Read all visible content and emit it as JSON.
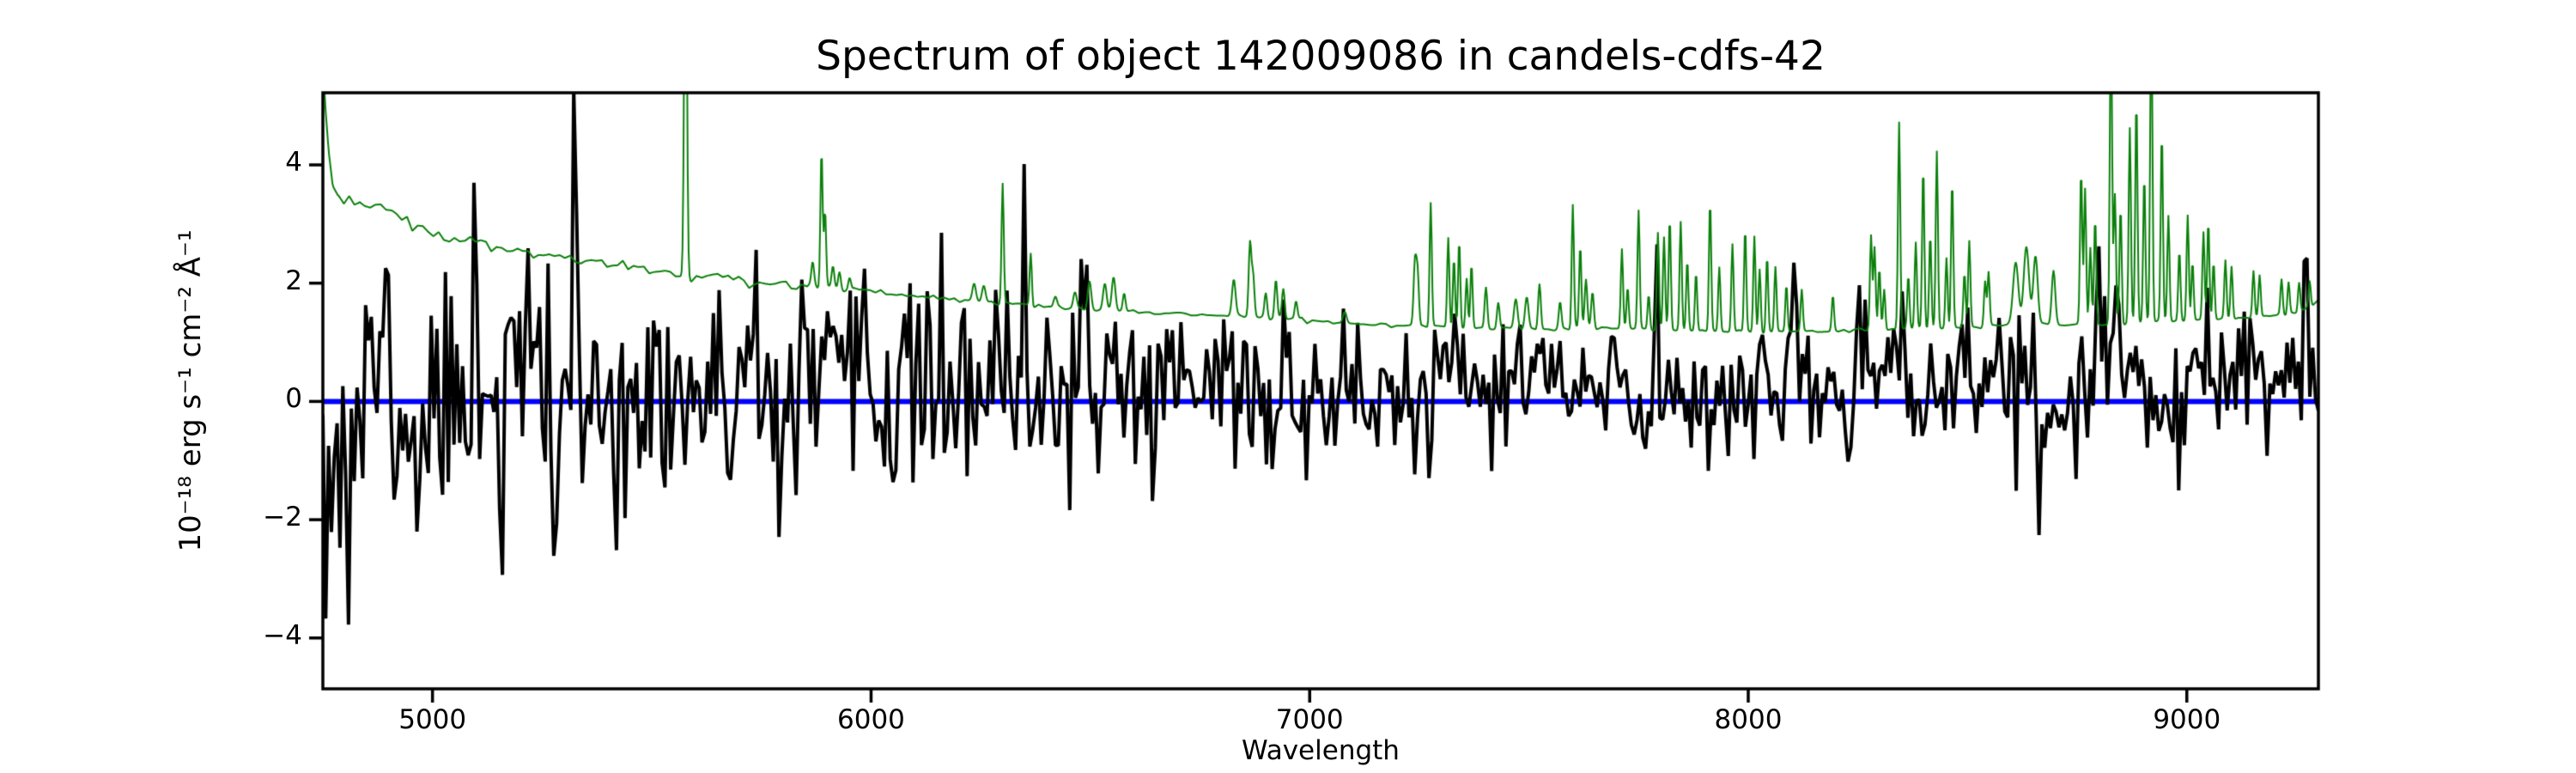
{
  "title": "Spectrum of object 142009086 in candels-cdfs-42",
  "axes": {
    "xlabel": "Wavelength",
    "ylabel": "10⁻¹⁸ erg s⁻¹ cm⁻² Å⁻¹"
  },
  "chart_data": {
    "type": "line",
    "title": "Spectrum of object 142009086 in candels-cdfs-42",
    "xlabel": "Wavelength",
    "ylabel": "10⁻¹⁸ erg s⁻¹ cm⁻² Å⁻¹",
    "xlim": [
      4750,
      9300
    ],
    "ylim": [
      -4.86,
      5.22
    ],
    "xticks": [
      5000,
      6000,
      7000,
      8000,
      9000
    ],
    "xtick_labels": [
      "5000",
      "6000",
      "7000",
      "8000",
      "9000"
    ],
    "yticks": [
      4,
      2,
      0,
      -2,
      -4
    ],
    "ytick_labels": [
      "4",
      "2",
      "0",
      "−2",
      "−4"
    ],
    "grid": false,
    "legend": null,
    "series": [
      {
        "name": "flux",
        "description": "noisy object flux spectrum around zero",
        "color": "#000000",
        "linewidth": 4,
        "sample_step": 6.5,
        "seed": 11,
        "baseline": [
          [
            4750,
            0.05
          ],
          [
            5500,
            0.1
          ],
          [
            6500,
            0.15
          ],
          [
            7500,
            0.18
          ],
          [
            8300,
            0.2
          ],
          [
            9300,
            0.22
          ]
        ],
        "noise_sigma": [
          [
            4750,
            1.15
          ],
          [
            5200,
            1.1
          ],
          [
            5600,
            1.0
          ],
          [
            6000,
            0.92
          ],
          [
            6400,
            0.85
          ],
          [
            6800,
            0.78
          ],
          [
            7200,
            0.7
          ],
          [
            7600,
            0.66
          ],
          [
            8000,
            0.62
          ],
          [
            8400,
            0.63
          ],
          [
            8700,
            0.68
          ],
          [
            9000,
            0.62
          ],
          [
            9300,
            0.6
          ]
        ],
        "slow_noise": {
          "step": 40,
          "sigma_scale": 0.38
        },
        "features": [
          [
            4754,
            2.5,
            3
          ],
          [
            4757,
            -4.7,
            2.5
          ],
          [
            4787,
            -2.2,
            4
          ],
          [
            4808,
            -2.6,
            4
          ],
          [
            4920,
            -2.6,
            5
          ],
          [
            4973,
            -2.2,
            5
          ],
          [
            5096,
            2.8,
            4
          ],
          [
            5155,
            -2.6,
            5
          ],
          [
            5278,
            -2.7,
            5
          ],
          [
            5325,
            4.5,
            3
          ],
          [
            5483,
            -2.5,
            5
          ],
          [
            5560,
            3.0,
            4
          ],
          [
            5680,
            -2.2,
            5
          ],
          [
            6075,
            1.6,
            4
          ],
          [
            6160,
            2.4,
            4
          ],
          [
            6350,
            3.0,
            4
          ],
          [
            6560,
            2.2,
            4
          ],
          [
            7790,
            2.0,
            4
          ],
          [
            8100,
            1.8,
            4
          ],
          [
            8350,
            1.9,
            4
          ],
          [
            8663,
            -2.0,
            5
          ],
          [
            8745,
            -2.2,
            4
          ],
          [
            8800,
            2.0,
            4
          ],
          [
            9270,
            1.7,
            4
          ]
        ]
      },
      {
        "name": "sky-noise-spectrum",
        "description": "green noise/sky spectrum with OH emission lines",
        "color": "#0a800a",
        "linewidth": 2,
        "sample_step": 2,
        "wiggle_seed": 3,
        "wiggle": [
          [
            4750,
            0.05
          ],
          [
            5000,
            0.05
          ],
          [
            5800,
            0.04
          ],
          [
            6200,
            0.02
          ],
          [
            9300,
            0.015
          ]
        ],
        "continuum": [
          [
            4750,
            5.7
          ],
          [
            4756,
            4.9
          ],
          [
            4763,
            4.2
          ],
          [
            4772,
            3.7
          ],
          [
            4785,
            3.45
          ],
          [
            4830,
            3.35
          ],
          [
            4870,
            3.3
          ],
          [
            4910,
            3.22
          ],
          [
            4950,
            3.05
          ],
          [
            5000,
            2.88
          ],
          [
            5040,
            2.75
          ],
          [
            5090,
            2.72
          ],
          [
            5150,
            2.62
          ],
          [
            5250,
            2.5
          ],
          [
            5350,
            2.38
          ],
          [
            5450,
            2.28
          ],
          [
            5550,
            2.18
          ],
          [
            5650,
            2.1
          ],
          [
            5750,
            2.0
          ],
          [
            5850,
            1.95
          ],
          [
            5950,
            1.9
          ],
          [
            6050,
            1.82
          ],
          [
            6150,
            1.75
          ],
          [
            6250,
            1.68
          ],
          [
            6350,
            1.64
          ],
          [
            6450,
            1.58
          ],
          [
            6550,
            1.54
          ],
          [
            6650,
            1.5
          ],
          [
            6750,
            1.47
          ],
          [
            6850,
            1.44
          ],
          [
            6950,
            1.4
          ],
          [
            7050,
            1.33
          ],
          [
            7150,
            1.3
          ],
          [
            7250,
            1.27
          ],
          [
            7350,
            1.25
          ],
          [
            7450,
            1.23
          ],
          [
            7550,
            1.21
          ],
          [
            7650,
            1.25
          ],
          [
            7750,
            1.22
          ],
          [
            7850,
            1.2
          ],
          [
            7950,
            1.19
          ],
          [
            8050,
            1.17
          ],
          [
            8150,
            1.18
          ],
          [
            8250,
            1.2
          ],
          [
            8350,
            1.22
          ],
          [
            8450,
            1.25
          ],
          [
            8550,
            1.27
          ],
          [
            8650,
            1.32
          ],
          [
            8750,
            1.3
          ],
          [
            8850,
            1.32
          ],
          [
            8950,
            1.35
          ],
          [
            9050,
            1.38
          ],
          [
            9150,
            1.42
          ],
          [
            9250,
            1.5
          ],
          [
            9285,
            1.62
          ],
          [
            9300,
            1.72
          ]
        ],
        "emission_lines": [
          [
            5577,
            7.0,
            3
          ],
          [
            5867,
            0.35,
            3
          ],
          [
            5887,
            2.35,
            2.5
          ],
          [
            5895,
            1.3,
            2.5
          ],
          [
            5913,
            0.35,
            3
          ],
          [
            5928,
            0.3,
            3
          ],
          [
            5951,
            0.2,
            3
          ],
          [
            6235,
            0.3,
            4
          ],
          [
            6257,
            0.28,
            4
          ],
          [
            6300,
            2.05,
            2.5
          ],
          [
            6364,
            0.9,
            2.5
          ],
          [
            6420,
            0.2,
            4
          ],
          [
            6465,
            0.3,
            4
          ],
          [
            6498,
            0.5,
            4
          ],
          [
            6533,
            0.45,
            4
          ],
          [
            6553,
            0.55,
            4
          ],
          [
            6577,
            0.3,
            3
          ],
          [
            6827,
            0.6,
            4
          ],
          [
            6864,
            1.25,
            3
          ],
          [
            6871,
            0.7,
            3
          ],
          [
            6900,
            0.4,
            3
          ],
          [
            6923,
            0.65,
            3
          ],
          [
            6940,
            0.5,
            3
          ],
          [
            6969,
            0.3,
            3
          ],
          [
            7080,
            0.2,
            4
          ],
          [
            7240,
            1.05,
            3
          ],
          [
            7246,
            0.9,
            3
          ],
          [
            7276,
            2.1,
            2.5
          ],
          [
            7316,
            1.55,
            2.5
          ],
          [
            7329,
            1.2,
            2.5
          ],
          [
            7341,
            1.5,
            2.5
          ],
          [
            7358,
            0.85,
            2.5
          ],
          [
            7369,
            1.1,
            2.5
          ],
          [
            7402,
            0.7,
            3
          ],
          [
            7430,
            0.45,
            3
          ],
          [
            7470,
            0.5,
            4
          ],
          [
            7495,
            0.55,
            4
          ],
          [
            7524,
            0.8,
            3
          ],
          [
            7571,
            0.45,
            3
          ],
          [
            7600,
            2.1,
            2.5
          ],
          [
            7617,
            1.4,
            2.5
          ],
          [
            7630,
            0.85,
            3
          ],
          [
            7645,
            0.6,
            3
          ],
          [
            7712,
            1.35,
            2.5
          ],
          [
            7725,
            0.7,
            2.5
          ],
          [
            7750,
            2.0,
            2.5
          ],
          [
            7773,
            0.6,
            2.5
          ],
          [
            7794,
            1.65,
            2.5
          ],
          [
            7808,
            1.55,
            2.5
          ],
          [
            7821,
            1.9,
            2.5
          ],
          [
            7846,
            1.85,
            2.5
          ],
          [
            7861,
            1.2,
            2.5
          ],
          [
            7881,
            1.0,
            2.5
          ],
          [
            7913,
            2.2,
            2.5
          ],
          [
            7934,
            1.1,
            2.5
          ],
          [
            7964,
            1.5,
            2.5
          ],
          [
            7993,
            1.75,
            2.5
          ],
          [
            8014,
            1.65,
            2.5
          ],
          [
            8026,
            1.1,
            2.5
          ],
          [
            8043,
            1.3,
            2.5
          ],
          [
            8062,
            1.1,
            2.5
          ],
          [
            8087,
            0.8,
            2.5
          ],
          [
            8122,
            0.7,
            2.5
          ],
          [
            8193,
            0.6,
            2.5
          ],
          [
            8280,
            1.6,
            2.5
          ],
          [
            8288,
            1.4,
            2.5
          ],
          [
            8299,
            1.05,
            2.5
          ],
          [
            8310,
            0.7,
            2.5
          ],
          [
            8344,
            3.5,
            2.5
          ],
          [
            8365,
            0.9,
            2.5
          ],
          [
            8382,
            1.45,
            2.5
          ],
          [
            8399,
            2.75,
            2.5
          ],
          [
            8415,
            1.6,
            2.5
          ],
          [
            8430,
            3.0,
            2.5
          ],
          [
            8452,
            1.2,
            2.5
          ],
          [
            8465,
            2.5,
            2.5
          ],
          [
            8493,
            0.9,
            2.5
          ],
          [
            8504,
            1.45,
            2.5
          ],
          [
            8540,
            0.75,
            2.5
          ],
          [
            8548,
            0.9,
            2.5
          ],
          [
            8610,
            1.05,
            6
          ],
          [
            8634,
            1.3,
            6
          ],
          [
            8655,
            1.15,
            5
          ],
          [
            8696,
            0.9,
            4
          ],
          [
            8759,
            2.6,
            2.5
          ],
          [
            8768,
            2.3,
            2.5
          ],
          [
            8780,
            1.3,
            2.5
          ],
          [
            8791,
            1.8,
            2.5
          ],
          [
            8827,
            5.5,
            2.5
          ],
          [
            8836,
            2.2,
            2.5
          ],
          [
            8849,
            2.0,
            2.5
          ],
          [
            8870,
            3.3,
            2.5
          ],
          [
            8885,
            3.8,
            2.5
          ],
          [
            8903,
            2.5,
            2.5
          ],
          [
            8919,
            5.5,
            2.5
          ],
          [
            8943,
            3.2,
            2.5
          ],
          [
            8958,
            1.8,
            2.5
          ],
          [
            8983,
            1.2,
            2.5
          ],
          [
            9002,
            1.8,
            2.5
          ],
          [
            9013,
            1.0,
            2.5
          ],
          [
            9038,
            1.5,
            2.5
          ],
          [
            9049,
            1.7,
            2.5
          ],
          [
            9061,
            1.0,
            2.5
          ],
          [
            9088,
            1.0,
            2.5
          ],
          [
            9102,
            0.9,
            2.5
          ],
          [
            9152,
            0.8,
            2.5
          ],
          [
            9166,
            0.7,
            2.5
          ],
          [
            9216,
            0.6,
            2.5
          ],
          [
            9232,
            0.55,
            2.5
          ],
          [
            9256,
            0.5,
            2.5
          ],
          [
            9280,
            0.45,
            2.5
          ]
        ]
      },
      {
        "name": "zero-line",
        "description": "horizontal reference line at flux = 0",
        "color": "#0000ff",
        "linewidth": 6,
        "y": 0
      }
    ]
  }
}
